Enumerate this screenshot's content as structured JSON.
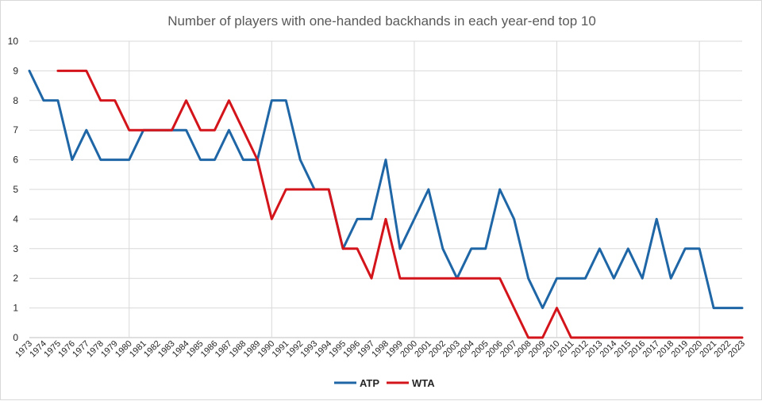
{
  "chart_data": {
    "type": "line",
    "title": "Number of players with one-handed backhands in each year-end top 10",
    "xlabel": "",
    "ylabel": "",
    "ylim": [
      0,
      10
    ],
    "yticks": [
      0,
      1,
      2,
      3,
      4,
      5,
      6,
      7,
      8,
      9,
      10
    ],
    "grid": true,
    "legend_position": "bottom",
    "categories": [
      "1973",
      "1974",
      "1975",
      "1976",
      "1977",
      "1978",
      "1979",
      "1980",
      "1981",
      "1982",
      "1983",
      "1984",
      "1985",
      "1986",
      "1987",
      "1988",
      "1989",
      "1990",
      "1991",
      "1992",
      "1993",
      "1994",
      "1995",
      "1996",
      "1997",
      "1998",
      "1999",
      "2000",
      "2001",
      "2002",
      "2003",
      "2004",
      "2005",
      "2006",
      "2007",
      "2008",
      "2009",
      "2010",
      "2011",
      "2012",
      "2013",
      "2014",
      "2015",
      "2016",
      "2017",
      "2018",
      "2019",
      "2020",
      "2021",
      "2022",
      "2023"
    ],
    "series": [
      {
        "name": "ATP",
        "color": "#1f66a6",
        "values": [
          9,
          8,
          8,
          6,
          7,
          6,
          6,
          6,
          7,
          7,
          7,
          7,
          6,
          6,
          7,
          6,
          6,
          8,
          8,
          6,
          5,
          5,
          3,
          4,
          4,
          6,
          3,
          4,
          5,
          3,
          2,
          3,
          3,
          5,
          4,
          2,
          1,
          2,
          2,
          2,
          3,
          2,
          3,
          2,
          4,
          2,
          3,
          3,
          1,
          1,
          1
        ]
      },
      {
        "name": "WTA",
        "color": "#d4141b",
        "values": [
          null,
          null,
          9,
          9,
          9,
          8,
          8,
          7,
          7,
          7,
          7,
          8,
          7,
          7,
          8,
          7,
          6,
          4,
          5,
          5,
          5,
          5,
          3,
          3,
          2,
          4,
          2,
          2,
          2,
          2,
          2,
          2,
          2,
          2,
          1,
          0,
          0,
          1,
          0,
          0,
          0,
          0,
          0,
          0,
          0,
          0,
          0,
          0,
          0,
          0,
          0
        ]
      }
    ]
  }
}
